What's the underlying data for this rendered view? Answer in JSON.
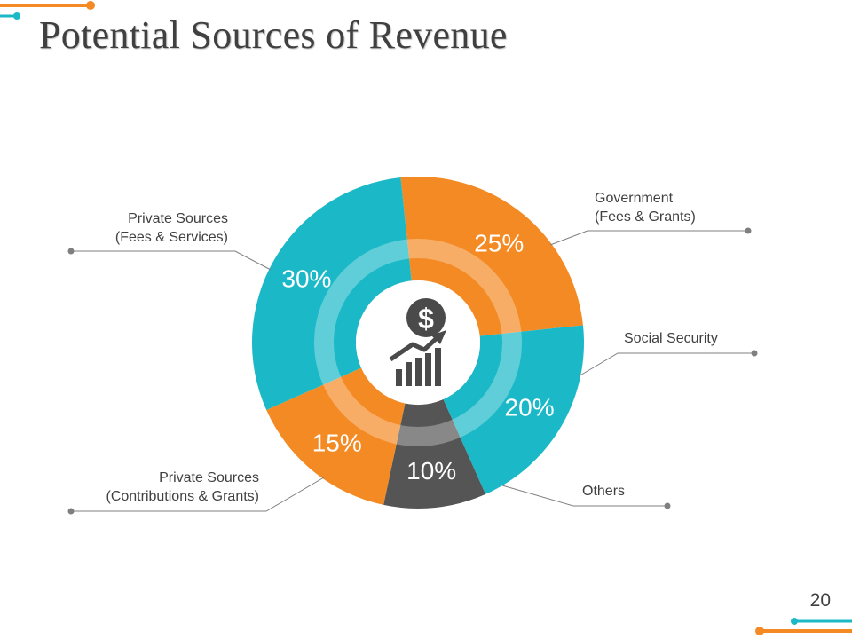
{
  "slide": {
    "title": "Potential Sources of Revenue",
    "page_number": "20"
  },
  "colors": {
    "orange": "#F48A24",
    "teal": "#1BB9C7",
    "dark_gray": "#555555",
    "text": "#404040",
    "leader_line": "#7f7f7f",
    "center_icon": "#4a4a4a"
  },
  "center_icon": "dollar-growth-chart-icon",
  "chart_data": {
    "type": "pie",
    "style": "donut",
    "slices": [
      {
        "label_lines": [
          "Government",
          "(Fees & Grants)"
        ],
        "value": 25,
        "value_label": "25%",
        "color": "#F48A24"
      },
      {
        "label_lines": [
          "Social Security"
        ],
        "value": 20,
        "value_label": "20%",
        "color": "#1BB9C7"
      },
      {
        "label_lines": [
          "Others"
        ],
        "value": 10,
        "value_label": "10%",
        "color": "#555555"
      },
      {
        "label_lines": [
          "Private Sources",
          "(Contributions & Grants)"
        ],
        "value": 15,
        "value_label": "15%",
        "color": "#F48A24"
      },
      {
        "label_lines": [
          "Private Sources",
          "(Fees & Services)"
        ],
        "value": 30,
        "value_label": "30%",
        "color": "#1BB9C7"
      }
    ]
  }
}
